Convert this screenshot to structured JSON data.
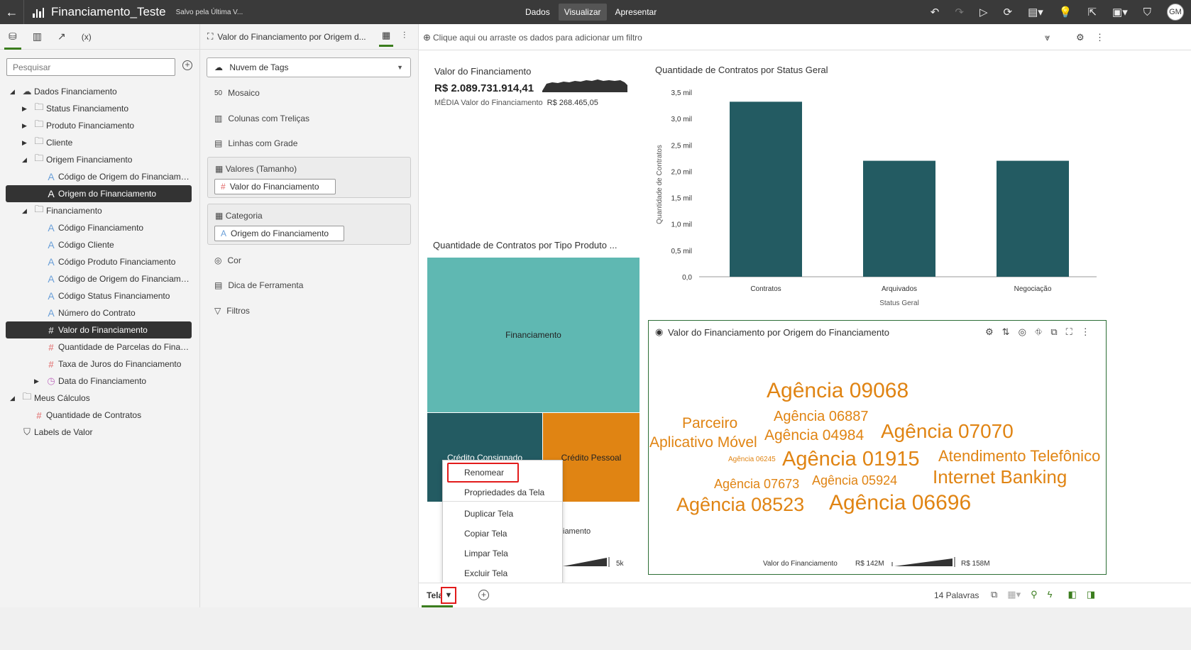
{
  "app": {
    "back": "←",
    "title": "Financiamento_Teste",
    "saved": "Salvo pela Última V...",
    "nav": [
      {
        "label": "Dados",
        "active": false
      },
      {
        "label": "Visualizar",
        "active": true
      },
      {
        "label": "Apresentar",
        "active": false
      }
    ],
    "avatar": "GM"
  },
  "data_panel": {
    "tabs": [
      "database-icon",
      "chart-icon",
      "trend-icon",
      "(x)"
    ],
    "search_placeholder": "Pesquisar",
    "tree": [
      {
        "label": "Dados Financiamento",
        "type": "dataset",
        "level": 0,
        "expanded": true
      },
      {
        "label": "Status Financiamento",
        "type": "folder",
        "level": 1,
        "expanded": false
      },
      {
        "label": "Produto Financiamento",
        "type": "folder",
        "level": 1,
        "expanded": false
      },
      {
        "label": "Cliente",
        "type": "folder",
        "level": 1,
        "expanded": false
      },
      {
        "label": "Origem Financiamento",
        "type": "folder",
        "level": 1,
        "expanded": true
      },
      {
        "label": "Código de Origem do Financiame...",
        "type": "attr",
        "level": 2
      },
      {
        "label": "Origem do Financiamento",
        "type": "attr",
        "level": 2,
        "selected": true
      },
      {
        "label": "Financiamento",
        "type": "folder",
        "level": 1,
        "expanded": true
      },
      {
        "label": "Código Financiamento",
        "type": "attr",
        "level": 2
      },
      {
        "label": "Código Cliente",
        "type": "attr",
        "level": 2
      },
      {
        "label": "Código Produto Financiamento",
        "type": "attr",
        "level": 2
      },
      {
        "label": "Código de Origem do Financiame...",
        "type": "attr",
        "level": 2
      },
      {
        "label": "Código Status Financiamento",
        "type": "attr",
        "level": 2
      },
      {
        "label": "Número do Contrato",
        "type": "attr",
        "level": 2
      },
      {
        "label": "Valor do Financiamento",
        "type": "measure",
        "level": 2,
        "selected": true
      },
      {
        "label": "Quantidade de Parcelas do Finan...",
        "type": "measure",
        "level": 2
      },
      {
        "label": "Taxa de Juros do Financiamento",
        "type": "measure",
        "level": 2
      },
      {
        "label": "Data do Financiamento",
        "type": "date",
        "level": 2,
        "expanded": false
      },
      {
        "label": "Meus Cálculos",
        "type": "folder",
        "level": 0,
        "expanded": true
      },
      {
        "label": "Quantidade de Contratos",
        "type": "measure",
        "level": 1
      },
      {
        "label": "Labels de Valor",
        "type": "tag",
        "level": 0
      }
    ]
  },
  "grammar": {
    "header": "Valor do Financiamento por Origem d...",
    "viz_type": "Nuvem de Tags",
    "rows": [
      {
        "label": "Mosaico",
        "icon": "50"
      },
      {
        "label": "Colunas com Treliças",
        "icon": "▥"
      },
      {
        "label": "Linhas com Grade",
        "icon": "▤"
      }
    ],
    "boxes": [
      {
        "label": "Valores (Tamanho)",
        "chip": "Valor do Financiamento",
        "chip_icon": "#"
      },
      {
        "label": "Categoria",
        "chip": "Origem do Financiamento",
        "chip_icon": "A"
      }
    ],
    "rows2": [
      {
        "label": "Cor",
        "icon": "◎"
      },
      {
        "label": "Dica de Ferramenta",
        "icon": "▤"
      },
      {
        "label": "Filtros",
        "icon": "▽"
      }
    ]
  },
  "filter_bar": {
    "placeholder": "Clique aqui ou arraste os dados para adicionar um filtro"
  },
  "tile": {
    "title": "Valor do Financiamento",
    "value": "R$ 2.089.731.914,41",
    "sub_label": "MÉDIA Valor do Financiamento",
    "sub_value": "R$ 268.465,05"
  },
  "bar_chart": {
    "title": "Quantidade de Contratos por Status Geral",
    "chart_data": {
      "type": "bar",
      "categories": [
        "Contratos",
        "Arquivados",
        "Negociação"
      ],
      "values": [
        3320,
        2200,
        2200
      ],
      "ylabel": "Quantidade de Contratos",
      "xlabel": "Status Geral",
      "ylim": [
        0,
        3500
      ],
      "ticks": [
        "0,0",
        "0,5 mil",
        "1,0 mil",
        "1,5 mil",
        "2,0 mil",
        "2,5 mil",
        "3,0 mil",
        "3,5 mil"
      ],
      "color": "#235b62"
    }
  },
  "treemap": {
    "title": "Quantidade de Contratos por Tipo Produto ...",
    "cells": [
      {
        "label": "Financiamento",
        "color": "#5fb8b2"
      },
      {
        "label": "Crédito Consignado",
        "color": "#235b62"
      },
      {
        "label": "Crédito Pessoal",
        "color": "#e08413"
      }
    ],
    "legend_partial": "iamento",
    "legend_max": "5k"
  },
  "cloud": {
    "title": "Valor do Financiamento por Origem do Financiamento",
    "color": "#e08413",
    "words": [
      {
        "text": "Agência 09068",
        "size": 30
      },
      {
        "text": "Parceiro",
        "size": 21
      },
      {
        "text": "Agência 06887",
        "size": 20
      },
      {
        "text": "Aplicativo Móvel",
        "size": 21
      },
      {
        "text": "Agência 04984",
        "size": 21
      },
      {
        "text": "Agência 07070",
        "size": 28
      },
      {
        "text": "Agência 06245",
        "size": 10
      },
      {
        "text": "Agência 01915",
        "size": 29
      },
      {
        "text": "Atendimento Telefônico",
        "size": 22
      },
      {
        "text": "Internet Banking",
        "size": 26
      },
      {
        "text": "Agência 07673",
        "size": 18
      },
      {
        "text": "Agência 05924",
        "size": 18
      },
      {
        "text": "Agência 08523",
        "size": 27
      },
      {
        "text": "Agência 06696",
        "size": 30
      }
    ],
    "legend_label": "Valor do Financiamento",
    "legend_min": "R$ 142M",
    "legend_max": "R$ 158M"
  },
  "context_menu": {
    "items": [
      "Renomear",
      "Propriedades da Tela",
      "Duplicar Tela",
      "Copiar Tela",
      "Limpar Tela",
      "Excluir Tela"
    ]
  },
  "bottom": {
    "tab_label": "Tela",
    "words": "14 Palavras"
  }
}
